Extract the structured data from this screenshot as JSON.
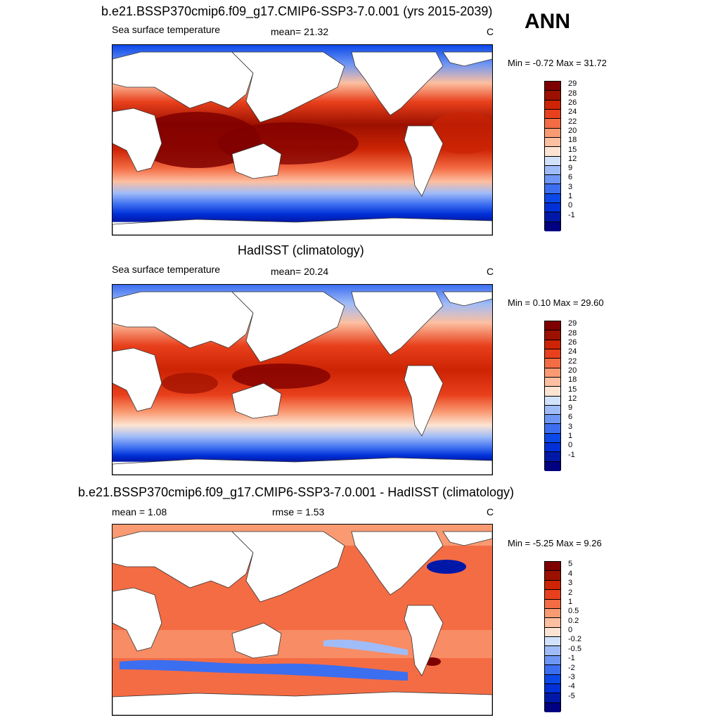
{
  "season": "ANN",
  "panels": [
    {
      "id": "test",
      "title": "b.e21.BSSP370cmip6.f09_g17.CMIP6-SSP3-7.0.001 (yrs 2015-2039)",
      "left_label": "Sea surface temperature",
      "mid_label": "mean=  21.32",
      "units": "C",
      "minmax": "Min =  -0.72 Max =  31.72"
    },
    {
      "id": "obs",
      "title": "HadISST (climatology)",
      "left_label": "Sea surface temperature",
      "mid_label": "mean=  20.24",
      "units": "C",
      "minmax": "Min =   0.10 Max =  29.60"
    },
    {
      "id": "diff",
      "title": "b.e21.BSSP370cmip6.f09_g17.CMIP6-SSP3-7.0.001 - HadISST (climatology)",
      "left_label": "mean =   1.08",
      "mid_label": "rmse =   1.53",
      "units": "C",
      "minmax": "Min =  -5.25 Max =   9.26"
    }
  ],
  "chart_data": [
    {
      "type": "heatmap",
      "title": "b.e21.BSSP370cmip6.f09_g17.CMIP6-SSP3-7.0.001 (yrs 2015-2039)",
      "variable": "Sea surface temperature",
      "units": "C",
      "mean": 21.32,
      "min": -0.72,
      "max": 31.72,
      "levels": [
        -1,
        0,
        1,
        3,
        6,
        9,
        12,
        15,
        18,
        20,
        22,
        24,
        26,
        28,
        29
      ],
      "tick_labels": [
        "29",
        "28",
        "26",
        "24",
        "22",
        "20",
        "18",
        "15",
        "12",
        "9",
        "6",
        "3",
        "1",
        "0",
        "-1"
      ],
      "colors": [
        "#000080",
        "#0018a8",
        "#0030d8",
        "#0b48e8",
        "#3c6ef0",
        "#6e96f4",
        "#a0bcf8",
        "#d2e2fc",
        "#fde4d2",
        "#fcbfa0",
        "#f99a72",
        "#f46c44",
        "#e8401c",
        "#cc2404",
        "#9c1000",
        "#7f0000"
      ]
    },
    {
      "type": "heatmap",
      "title": "HadISST (climatology)",
      "variable": "Sea surface temperature",
      "units": "C",
      "mean": 20.24,
      "min": 0.1,
      "max": 29.6,
      "levels": [
        -1,
        0,
        1,
        3,
        6,
        9,
        12,
        15,
        18,
        20,
        22,
        24,
        26,
        28,
        29
      ],
      "tick_labels": [
        "29",
        "28",
        "26",
        "24",
        "22",
        "20",
        "18",
        "15",
        "12",
        "9",
        "6",
        "3",
        "1",
        "0",
        "-1"
      ],
      "colors": [
        "#000080",
        "#0018a8",
        "#0030d8",
        "#0b48e8",
        "#3c6ef0",
        "#6e96f4",
        "#a0bcf8",
        "#d2e2fc",
        "#fde4d2",
        "#fcbfa0",
        "#f99a72",
        "#f46c44",
        "#e8401c",
        "#cc2404",
        "#9c1000",
        "#7f0000"
      ]
    },
    {
      "type": "heatmap",
      "title": "b.e21.BSSP370cmip6.f09_g17.CMIP6-SSP3-7.0.001 - HadISST (climatology)",
      "units": "C",
      "mean": 1.08,
      "rmse": 1.53,
      "min": -5.25,
      "max": 9.26,
      "levels": [
        -5,
        -4,
        -3,
        -2,
        -1,
        -0.5,
        -0.2,
        0,
        0.2,
        0.5,
        1,
        2,
        3,
        4,
        5
      ],
      "tick_labels": [
        "5",
        "4",
        "3",
        "2",
        "1",
        "0.5",
        "0.2",
        "0",
        "-0.2",
        "-0.5",
        "-1",
        "-2",
        "-3",
        "-4",
        "-5"
      ],
      "colors": [
        "#000080",
        "#0018a8",
        "#0030d8",
        "#0b48e8",
        "#3c6ef0",
        "#6e96f4",
        "#a0bcf8",
        "#d2e2fc",
        "#fde4d2",
        "#fcbfa0",
        "#f99a72",
        "#f46c44",
        "#e8401c",
        "#cc2404",
        "#9c1000",
        "#7f0000"
      ]
    }
  ]
}
